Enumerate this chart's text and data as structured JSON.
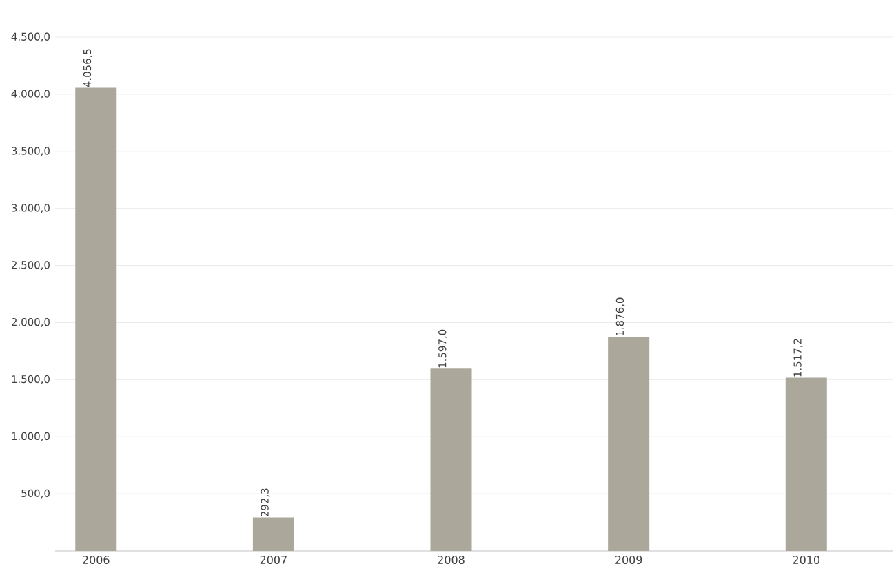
{
  "chart_data": {
    "type": "bar",
    "categories": [
      "2006",
      "2007",
      "2008",
      "2009",
      "2010"
    ],
    "values": [
      4056.5,
      292.3,
      1597.0,
      1876.0,
      1517.2
    ],
    "value_labels": [
      "4.056,5",
      "292,3",
      "1.597,0",
      "1.876,0",
      "1.517,2"
    ],
    "color": "#aba89b",
    "ylim": [
      0,
      4500
    ],
    "yticks": [
      {
        "value": 500,
        "label": "500,0"
      },
      {
        "value": 1000,
        "label": "1.000,0"
      },
      {
        "value": 1500,
        "label": "1.500,0"
      },
      {
        "value": 2000,
        "label": "2.000,0"
      },
      {
        "value": 2500,
        "label": "2.500,0"
      },
      {
        "value": 3000,
        "label": "3.000,0"
      },
      {
        "value": 3500,
        "label": "3.500,0"
      },
      {
        "value": 4000,
        "label": "4.000,0"
      },
      {
        "value": 4500,
        "label": "4.500,0"
      }
    ],
    "grid": "y"
  }
}
